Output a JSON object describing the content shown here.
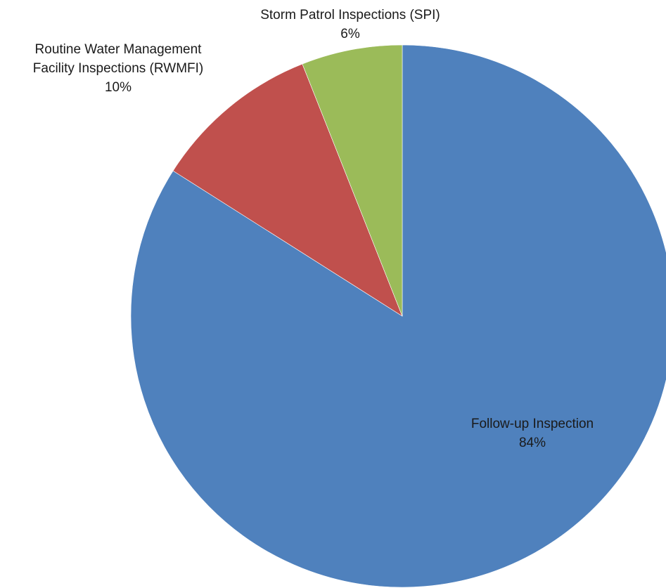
{
  "chart_data": {
    "type": "pie",
    "title": "",
    "start_angle_deg": 0,
    "direction": "clockwise",
    "slices": [
      {
        "name": "Follow-up Inspection",
        "value": 84,
        "percent_label": "84%",
        "label_lines": [
          "Follow-up Inspection"
        ],
        "color": "#4F81BD"
      },
      {
        "name": "Routine Water Management Facility Inspections (RWMFI)",
        "value": 10,
        "percent_label": "10%",
        "label_lines": [
          "Routine Water Management",
          "Facility Inspections (RWMFI)"
        ],
        "color": "#C0504D"
      },
      {
        "name": "Storm Patrol Inspections (SPI)",
        "value": 6,
        "percent_label": "6%",
        "label_lines": [
          "Storm Patrol Inspections (SPI)"
        ],
        "color": "#9BBB59"
      }
    ],
    "legend": "none",
    "data_labels": "category-and-percent"
  }
}
